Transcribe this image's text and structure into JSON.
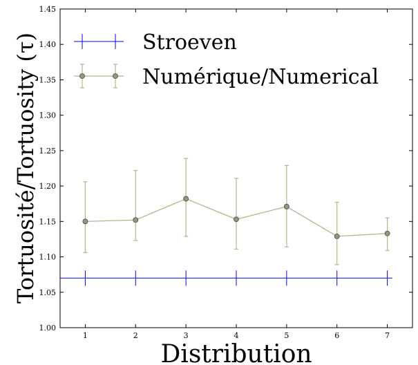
{
  "chart_data": {
    "type": "line",
    "xlabel": "Distribution",
    "ylabel": "Tortuosité/Tortuosity (τ)",
    "xlim": [
      0.5,
      7.5
    ],
    "ylim": [
      1.0,
      1.45
    ],
    "x_ticks": [
      "1",
      "2",
      "3",
      "4",
      "5",
      "6",
      "7"
    ],
    "y_ticks": [
      "1.00",
      "1.05",
      "1.10",
      "1.15",
      "1.20",
      "1.25",
      "1.30",
      "1.35",
      "1.40",
      "1.45"
    ],
    "grid": false,
    "legend_position": "top-left",
    "series": [
      {
        "name": "Stroeven",
        "color": "#0000ff",
        "marker": "vertical-tick",
        "x": [
          1,
          2,
          3,
          4,
          5,
          6,
          7
        ],
        "values": [
          1.07,
          1.07,
          1.07,
          1.07,
          1.07,
          1.07,
          1.07
        ],
        "extend_x": [
          0.5,
          7.1
        ]
      },
      {
        "name": "Numérique/Numerical",
        "color": "#b5b58c",
        "marker": "circle",
        "marker_fill": "#9a9580",
        "x": [
          1,
          2,
          3,
          4,
          5,
          6,
          7
        ],
        "values": [
          1.15,
          1.152,
          1.182,
          1.153,
          1.171,
          1.129,
          1.133
        ],
        "err_low": [
          1.106,
          1.123,
          1.129,
          1.111,
          1.114,
          1.089,
          1.109
        ],
        "err_high": [
          1.206,
          1.222,
          1.239,
          1.211,
          1.229,
          1.177,
          1.155
        ]
      }
    ]
  }
}
